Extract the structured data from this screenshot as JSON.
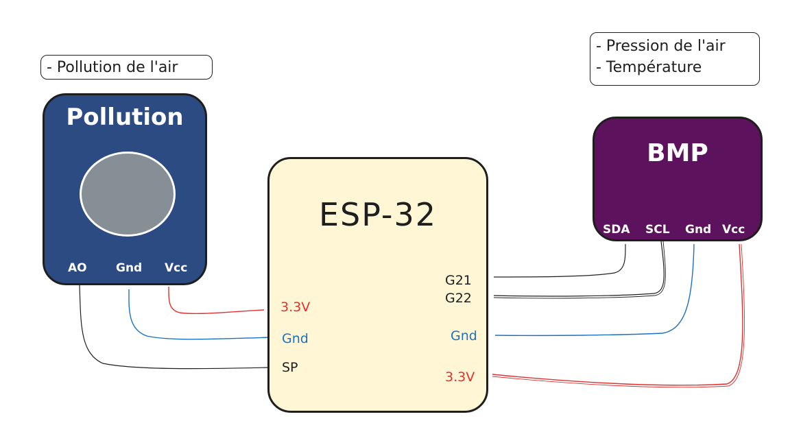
{
  "notes": {
    "pollution": "- Pollution de l'air",
    "bmp_line1": "- Pression de l'air",
    "bmp_line2": "- Température"
  },
  "pollution_sensor": {
    "title": "Pollution",
    "pins": {
      "a0": "AO",
      "gnd": "Gnd",
      "vcc": "Vcc"
    }
  },
  "esp32": {
    "title": "ESP-32",
    "left_pins": {
      "v33": "3.3V",
      "gnd": "Gnd",
      "sp": "SP"
    },
    "right_pins": {
      "g21": "G21",
      "g22": "G22",
      "gnd": "Gnd",
      "v33": "3.3V"
    }
  },
  "bmp_sensor": {
    "title": "BMP",
    "pins": {
      "sda": "SDA",
      "scl": "SCL",
      "gnd": "Gnd",
      "vcc": "Vcc"
    }
  },
  "colors": {
    "pollution_fill": "#2b4b82",
    "esp_fill": "#fff6d6",
    "bmp_fill": "#5c125c",
    "hole_fill": "#868e96",
    "wire_power": "#e03131",
    "wire_ground": "#1971c2",
    "wire_signal": "#1e1e1e"
  }
}
